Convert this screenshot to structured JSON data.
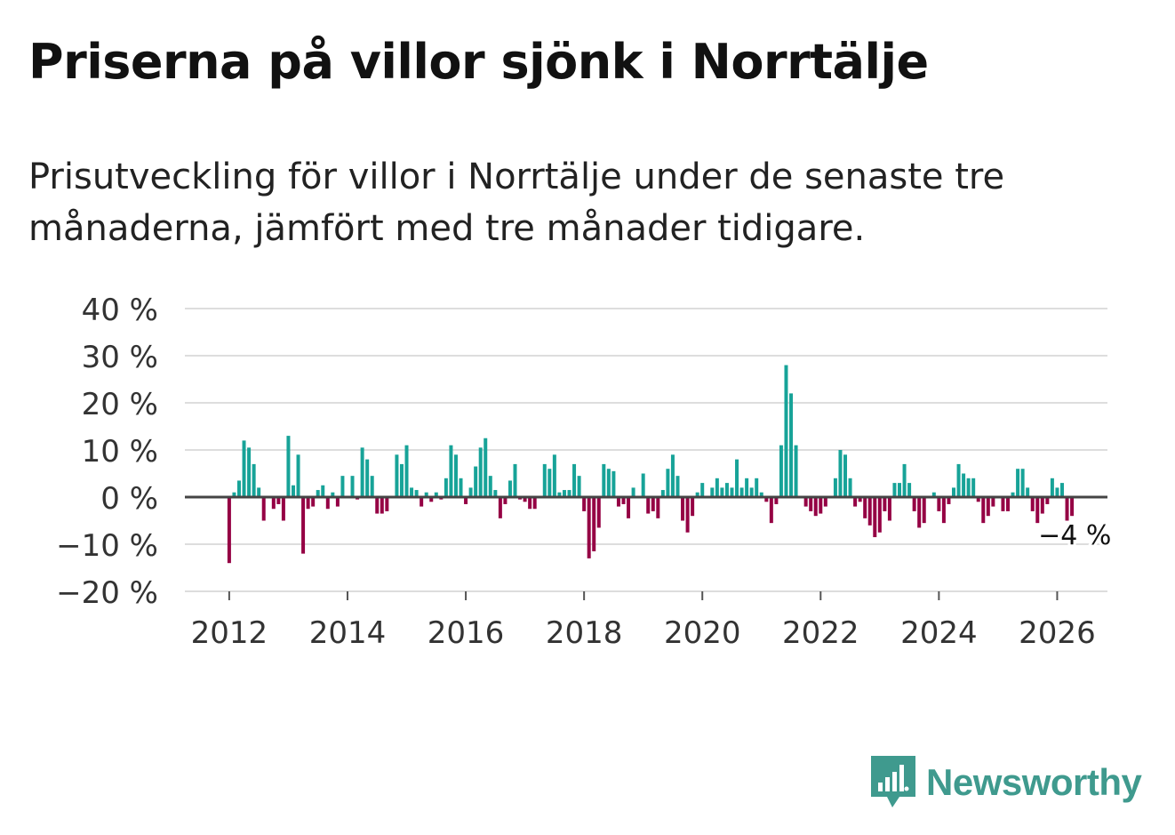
{
  "title": "Priserna på villor sjönk i Norrtälje",
  "subtitle": "Prisutveckling för villor i Norrtälje under de senaste tre månaderna, jämfört med tre månader tidigare.",
  "brand": {
    "name": "Newsworthy",
    "logo_color": "#3f9a8e"
  },
  "colors": {
    "positive": "#17a398",
    "negative": "#950044",
    "grid": "#dddddd",
    "zero_line": "#444444"
  },
  "chart_data": {
    "type": "bar",
    "title": "",
    "xlabel": "",
    "ylabel": "",
    "ylim": [
      -20,
      40
    ],
    "yticks": [
      -20,
      -10,
      0,
      10,
      20,
      30,
      40
    ],
    "ytick_labels": [
      "−20 %",
      "−10 %",
      "0 %",
      "10 %",
      "20 %",
      "30 %",
      "40 %"
    ],
    "xlim": [
      2011.25,
      2026.85
    ],
    "xticks": [
      2012,
      2014,
      2016,
      2018,
      2020,
      2022,
      2024,
      2026
    ],
    "xtick_labels": [
      "2012",
      "2014",
      "2016",
      "2018",
      "2020",
      "2022",
      "2024",
      "2026"
    ],
    "last_label": "−4 %",
    "start_year": 2012,
    "start_month": 1,
    "values": [
      -14,
      1,
      3.5,
      12,
      10.5,
      7,
      2,
      -5,
      0,
      -2.5,
      -1.5,
      -5,
      13,
      2.5,
      9,
      -12,
      -2.5,
      -2,
      1.5,
      2.5,
      -2.5,
      1,
      -2,
      4.5,
      0,
      4.5,
      -0.5,
      10.5,
      8,
      4.5,
      -3.5,
      -3.5,
      -3,
      0,
      9,
      7,
      11,
      2,
      1.5,
      -2,
      1,
      -1,
      1,
      -0.5,
      4,
      11,
      9,
      4,
      -1.5,
      2,
      6.5,
      10.5,
      12.5,
      4.5,
      1.5,
      -4.5,
      -1.5,
      3.5,
      7,
      -0.5,
      -1,
      -2.5,
      -2.5,
      0,
      7,
      6,
      9,
      1,
      1.5,
      1.5,
      7,
      4.5,
      -3,
      -13,
      -11.5,
      -6.5,
      7,
      6,
      5.5,
      -2,
      -1.5,
      -4.5,
      2,
      0,
      5,
      -3.5,
      -3,
      -4.5,
      1.5,
      6,
      9,
      4.5,
      -5,
      -7.5,
      -4,
      1,
      3,
      0,
      2,
      4,
      2,
      3,
      2,
      8,
      2,
      4,
      2,
      4,
      1,
      -1,
      -5.5,
      -1.5,
      11,
      28,
      22,
      11,
      0,
      -2,
      -3,
      -4,
      -3.5,
      -2,
      0,
      4,
      10,
      9,
      4,
      -2,
      -1,
      -4.5,
      -6,
      -8.5,
      -7.5,
      -3,
      -5,
      3,
      3,
      7,
      3,
      -3,
      -6.5,
      -5.5,
      0,
      1,
      -3,
      -5.5,
      -1.5,
      2,
      7,
      5,
      4,
      4,
      -1,
      -5.5,
      -4,
      -2,
      0,
      -3,
      -3,
      1,
      6,
      6,
      2,
      -3,
      -5.5,
      -3.5,
      -1.5,
      4,
      2,
      3,
      -5,
      -4
    ]
  }
}
